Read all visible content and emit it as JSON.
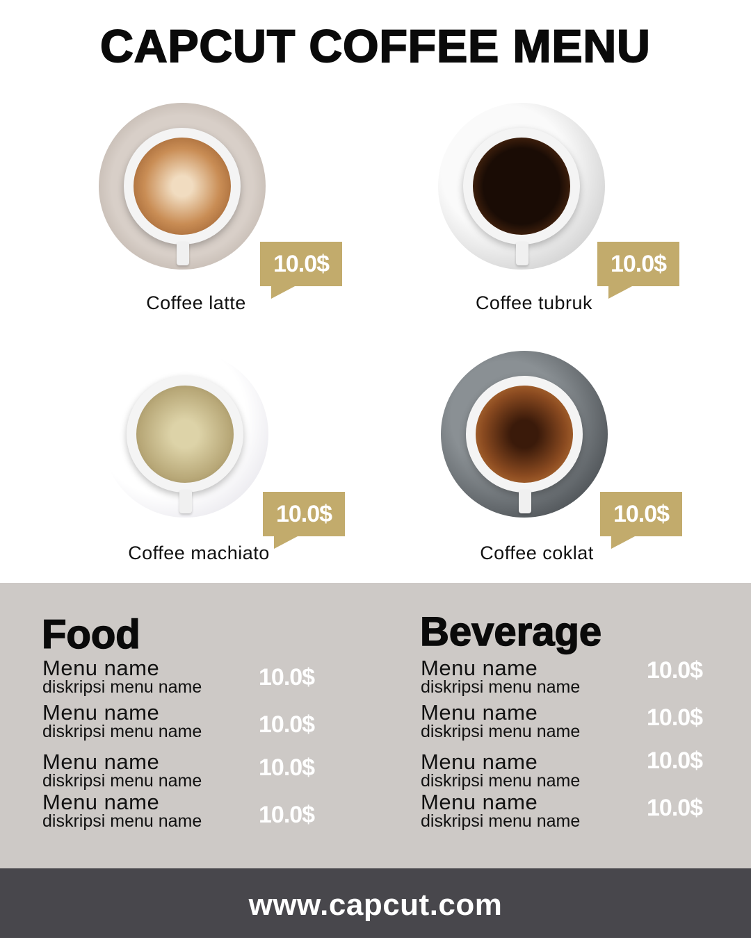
{
  "title": "CAPCUT COFFEE MENU",
  "colors": {
    "accent": "#c2ab6c",
    "band": "#cdc9c6",
    "footer": "#48474c"
  },
  "products": [
    {
      "name": "Coffee latte",
      "price": "10.0$"
    },
    {
      "name": "Coffee tubruk",
      "price": "10.0$"
    },
    {
      "name": "Coffee machiato",
      "price": "10.0$"
    },
    {
      "name": "Coffee coklat",
      "price": "10.0$"
    }
  ],
  "food": {
    "title": "Food",
    "items": [
      {
        "name": "Menu name",
        "desc": "diskripsi menu name",
        "price": "10.0$"
      },
      {
        "name": "Menu name",
        "desc": "diskripsi menu name",
        "price": "10.0$"
      },
      {
        "name": "Menu name",
        "desc": "diskripsi menu name",
        "price": "10.0$"
      },
      {
        "name": "Menu name",
        "desc": "diskripsi menu name",
        "price": "10.0$"
      }
    ]
  },
  "beverage": {
    "title": "Beverage",
    "items": [
      {
        "name": "Menu name",
        "desc": "diskripsi menu name",
        "price": "10.0$"
      },
      {
        "name": "Menu name",
        "desc": "diskripsi menu name",
        "price": "10.0$"
      },
      {
        "name": "Menu name",
        "desc": "diskripsi menu name",
        "price": "10.0$"
      },
      {
        "name": "Menu name",
        "desc": "diskripsi menu name",
        "price": "10.0$"
      }
    ]
  },
  "footer": "www.capcut.com"
}
